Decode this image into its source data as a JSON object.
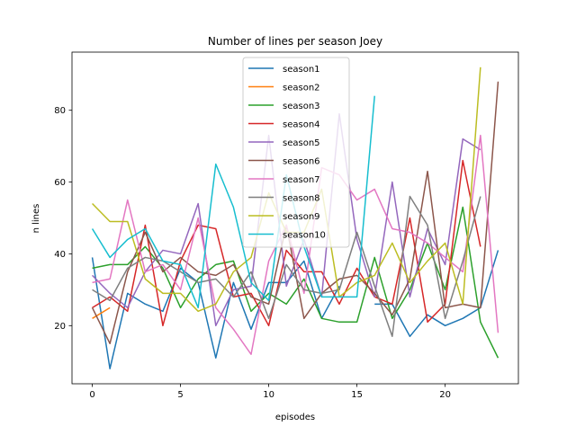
{
  "chart_data": {
    "type": "line",
    "title": "Number of lines per season Joey",
    "xlabel": "episodes",
    "ylabel": "n lines",
    "xlim": [
      -1.15,
      24.15
    ],
    "ylim": [
      3.8,
      96.2
    ],
    "xticks": [
      0,
      5,
      10,
      15,
      20
    ],
    "yticks": [
      20,
      40,
      60,
      80
    ],
    "grid": false,
    "legend_position": "upper center",
    "series": [
      {
        "name": "season1",
        "color": "#1f77b4",
        "x": [
          0,
          1,
          2,
          3,
          4,
          5,
          6,
          7,
          8,
          9,
          10,
          11,
          12,
          13,
          14,
          null,
          16,
          17,
          18,
          19,
          20,
          21,
          22,
          23
        ],
        "values": [
          39,
          8,
          29,
          26,
          24,
          36,
          32,
          11,
          32,
          19,
          32,
          32,
          38,
          22,
          31,
          null,
          26,
          26,
          17,
          23,
          20,
          22,
          25,
          41
        ]
      },
      {
        "name": "season2",
        "color": "#ff7f0e",
        "x": [
          0,
          1
        ],
        "values": [
          22,
          25
        ]
      },
      {
        "name": "season3",
        "color": "#2ca02c",
        "x": [
          0,
          1,
          2,
          3,
          4,
          5,
          6,
          7,
          8,
          9,
          10,
          11,
          12,
          13,
          14,
          15,
          16,
          17,
          18,
          19,
          20,
          21,
          22,
          23
        ],
        "values": [
          36,
          37,
          37,
          42,
          36,
          25,
          33,
          37,
          38,
          24,
          29,
          26,
          33,
          22,
          21,
          21,
          39,
          22,
          30,
          43,
          30,
          53,
          21,
          11
        ]
      },
      {
        "name": "season4",
        "color": "#d62728",
        "x": [
          0,
          1,
          2,
          3,
          4,
          5,
          6,
          7,
          8,
          9,
          10,
          11,
          12,
          13,
          14,
          15,
          16,
          17,
          18,
          19,
          20,
          21,
          22
        ],
        "values": [
          25,
          28,
          24,
          48,
          20,
          38,
          48,
          47,
          28,
          29,
          20,
          41,
          35,
          35,
          26,
          36,
          28,
          26,
          50,
          21,
          26,
          66,
          42
        ]
      },
      {
        "name": "season5",
        "color": "#9467bd",
        "x": [
          0,
          1,
          2,
          3,
          4,
          5,
          6,
          7,
          8,
          9,
          10,
          11,
          12,
          13,
          14,
          15,
          16,
          17,
          18,
          19,
          20,
          21,
          22
        ],
        "values": [
          34,
          29,
          25,
          35,
          41,
          40,
          54,
          20,
          30,
          31,
          73,
          31,
          44,
          28,
          79,
          44,
          28,
          60,
          28,
          47,
          37,
          72,
          69
        ]
      },
      {
        "name": "season6",
        "color": "#8c564b",
        "x": [
          0,
          1,
          2,
          3,
          4,
          5,
          6,
          7,
          8,
          9,
          10,
          11,
          12,
          13,
          14,
          15,
          16,
          17,
          18,
          19,
          20,
          21,
          22,
          23
        ],
        "values": [
          25,
          15,
          35,
          46,
          35,
          39,
          35,
          34,
          37,
          28,
          26,
          48,
          22,
          29,
          33,
          34,
          29,
          23,
          33,
          63,
          25,
          26,
          25,
          88
        ]
      },
      {
        "name": "season7",
        "color": "#e377c2",
        "x": [
          0,
          1,
          2,
          3,
          4,
          5,
          6,
          7,
          8,
          9,
          10,
          11,
          12,
          13,
          14,
          15,
          16,
          17,
          18,
          19,
          20,
          21,
          22,
          23
        ],
        "values": [
          32,
          33,
          55,
          35,
          37,
          30,
          50,
          25,
          19,
          12,
          38,
          48,
          29,
          64,
          62,
          55,
          58,
          47,
          46,
          43,
          39,
          35,
          73,
          18
        ]
      },
      {
        "name": "season8",
        "color": "#7f7f7f",
        "x": [
          0,
          1,
          2,
          3,
          4,
          5,
          6,
          7,
          8,
          9,
          10,
          11,
          12,
          13,
          14,
          15,
          16,
          17,
          18,
          19,
          20,
          21,
          22
        ],
        "values": [
          30,
          27,
          36,
          39,
          38,
          35,
          32,
          33,
          28,
          35,
          22,
          37,
          30,
          29,
          30,
          46,
          31,
          17,
          56,
          48,
          22,
          38,
          56
        ]
      },
      {
        "name": "season9",
        "color": "#bcbd22",
        "x": [
          0,
          1,
          2,
          3,
          4,
          5,
          6,
          7,
          8,
          9,
          10,
          11,
          12,
          13,
          14,
          15,
          16,
          17,
          18,
          19,
          20,
          21,
          22
        ],
        "values": [
          54,
          49,
          49,
          33,
          29,
          29,
          24,
          26,
          35,
          39,
          57,
          46,
          46,
          58,
          28,
          32,
          34,
          43,
          32,
          38,
          43,
          26,
          92
        ]
      },
      {
        "name": "season10",
        "color": "#17becf",
        "x": [
          0,
          1,
          2,
          3,
          4,
          5,
          6,
          7,
          8,
          9,
          10,
          11,
          12,
          13,
          14,
          15,
          16
        ],
        "values": [
          47,
          39,
          44,
          47,
          38,
          37,
          25,
          65,
          53,
          32,
          27,
          62,
          42,
          28,
          28,
          28,
          84
        ]
      }
    ]
  }
}
